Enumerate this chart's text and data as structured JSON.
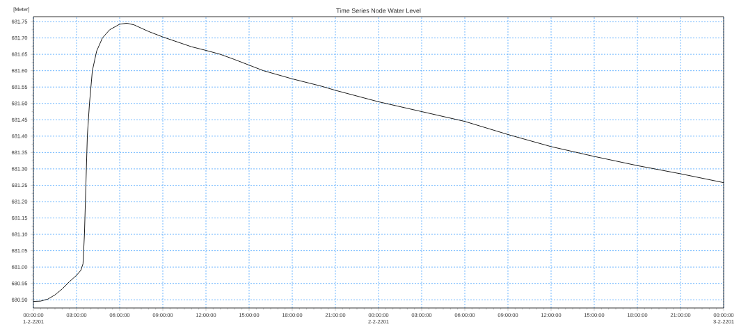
{
  "chart_data": {
    "type": "line",
    "title": "Time Series Node Water Level",
    "ylabel": "[Meter]",
    "x": [
      "2201-02-01T00:00",
      "2201-02-01T00:30",
      "2201-02-01T01:00",
      "2201-02-01T01:30",
      "2201-02-01T02:00",
      "2201-02-01T02:30",
      "2201-02-01T03:00",
      "2201-02-01T03:18",
      "2201-02-01T03:27",
      "2201-02-01T03:33",
      "2201-02-01T03:39",
      "2201-02-01T03:45",
      "2201-02-01T03:54",
      "2201-02-01T04:06",
      "2201-02-01T04:24",
      "2201-02-01T04:48",
      "2201-02-01T05:18",
      "2201-02-01T06:00",
      "2201-02-01T06:30",
      "2201-02-01T07:00",
      "2201-02-01T08:00",
      "2201-02-01T09:00",
      "2201-02-01T10:00",
      "2201-02-01T11:00",
      "2201-02-01T12:00",
      "2201-02-01T13:00",
      "2201-02-01T14:00",
      "2201-02-01T15:00",
      "2201-02-01T16:00",
      "2201-02-01T18:00",
      "2201-02-01T20:00",
      "2201-02-01T21:00",
      "2201-02-02T00:00",
      "2201-02-02T03:00",
      "2201-02-02T06:00",
      "2201-02-02T09:00",
      "2201-02-02T12:00",
      "2201-02-02T15:00",
      "2201-02-02T18:00",
      "2201-02-02T21:00",
      "2201-02-03T00:00"
    ],
    "series": [
      {
        "color": "#000000",
        "values": [
          680.895,
          680.896,
          680.902,
          680.915,
          680.933,
          680.955,
          680.975,
          680.99,
          681.01,
          681.1,
          681.25,
          681.4,
          681.5,
          681.6,
          681.66,
          681.7,
          681.725,
          681.742,
          681.745,
          681.74,
          681.72,
          681.703,
          681.688,
          681.673,
          681.662,
          681.65,
          681.634,
          681.617,
          681.6,
          681.575,
          681.553,
          681.54,
          681.505,
          681.475,
          681.445,
          681.405,
          681.368,
          681.338,
          681.31,
          681.285,
          681.258
        ]
      }
    ],
    "xlim": [
      "2201-02-01T00:00",
      "2201-02-03T00:00"
    ],
    "ylim": [
      680.875,
      681.765
    ],
    "xticks": [
      {
        "value": "2201-02-01T00:00",
        "label": "00:00:00 1-2-2201"
      },
      {
        "value": "2201-02-01T03:00",
        "label": "03:00:00"
      },
      {
        "value": "2201-02-01T06:00",
        "label": "06:00:00"
      },
      {
        "value": "2201-02-01T09:00",
        "label": "09:00:00"
      },
      {
        "value": "2201-02-01T12:00",
        "label": "12:00:00"
      },
      {
        "value": "2201-02-01T15:00",
        "label": "15:00:00"
      },
      {
        "value": "2201-02-01T18:00",
        "label": "18:00:00"
      },
      {
        "value": "2201-02-01T21:00",
        "label": "21:00:00"
      },
      {
        "value": "2201-02-02T00:00",
        "label": "00:00:00 2-2-2201"
      },
      {
        "value": "2201-02-02T03:00",
        "label": "03:00:00"
      },
      {
        "value": "2201-02-02T06:00",
        "label": "06:00:00"
      },
      {
        "value": "2201-02-02T09:00",
        "label": "09:00:00"
      },
      {
        "value": "2201-02-02T12:00",
        "label": "12:00:00"
      },
      {
        "value": "2201-02-02T15:00",
        "label": "15:00:00"
      },
      {
        "value": "2201-02-02T18:00",
        "label": "18:00:00"
      },
      {
        "value": "2201-02-02T21:00",
        "label": "21:00:00"
      },
      {
        "value": "2201-02-03T00:00",
        "label": "00:00:00 3-2-2201"
      }
    ],
    "yticks": [
      {
        "value": 680.9,
        "label": "680.90"
      },
      {
        "value": 680.95,
        "label": "680.95"
      },
      {
        "value": 681.0,
        "label": "681.00"
      },
      {
        "value": 681.05,
        "label": "681.05"
      },
      {
        "value": 681.1,
        "label": "681.10"
      },
      {
        "value": 681.15,
        "label": "681.15"
      },
      {
        "value": 681.2,
        "label": "681.20"
      },
      {
        "value": 681.25,
        "label": "681.25"
      },
      {
        "value": 681.3,
        "label": "681.30"
      },
      {
        "value": 681.35,
        "label": "681.35"
      },
      {
        "value": 681.4,
        "label": "681.40"
      },
      {
        "value": 681.45,
        "label": "681.45"
      },
      {
        "value": 681.5,
        "label": "681.50"
      },
      {
        "value": 681.55,
        "label": "681.55"
      },
      {
        "value": 681.6,
        "label": "681.60"
      },
      {
        "value": 681.65,
        "label": "681.65"
      },
      {
        "value": 681.7,
        "label": "681.70"
      },
      {
        "value": 681.75,
        "label": "681.75"
      }
    ],
    "grid": true,
    "marker": "none",
    "line_style": "solid"
  }
}
